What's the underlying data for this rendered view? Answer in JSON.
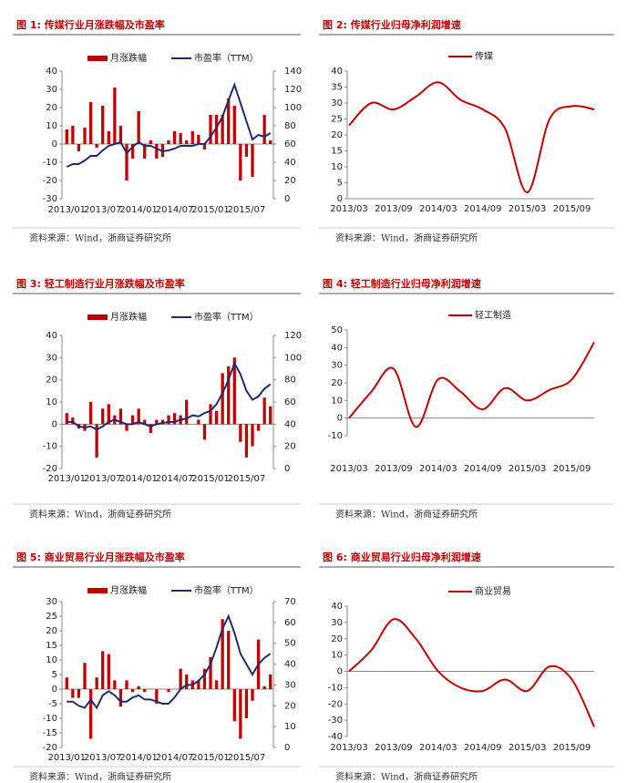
{
  "chart_data": [
    {
      "type": "combo",
      "title": "图 1: 传媒行业月涨跌幅及市盈率",
      "source": "资料来源：Wind，浙商证券研究所",
      "categories": [
        "2013/01",
        null,
        null,
        null,
        null,
        null,
        "2013/07",
        null,
        null,
        null,
        null,
        null,
        "2014/01",
        null,
        null,
        null,
        null,
        null,
        "2014/07",
        null,
        null,
        null,
        null,
        null,
        "2015/01",
        null,
        null,
        null,
        null,
        null,
        "2015/07",
        null,
        null,
        null,
        null
      ],
      "ylim": [
        -30,
        40
      ],
      "yticks": [
        -30,
        -20,
        -10,
        0,
        10,
        20,
        30,
        40
      ],
      "y2lim": [
        0,
        140
      ],
      "y2ticks": [
        0,
        20,
        40,
        60,
        80,
        100,
        120,
        140
      ],
      "series": [
        {
          "name": "月涨跌幅",
          "color": "#c00000",
          "values": [
            8,
            10,
            -4,
            9,
            23,
            -2,
            21,
            7,
            31,
            10,
            -20,
            -8,
            18,
            -8,
            2,
            -8,
            -7,
            2,
            7,
            6,
            2,
            7,
            5,
            -3,
            16,
            16,
            16,
            25,
            21,
            -20,
            -7,
            -18,
            0,
            16,
            2
          ]
        },
        {
          "name": "市盈率（TTM）",
          "color": "#1f2d6e",
          "axis": "y2",
          "values": [
            35,
            38,
            38,
            42,
            47,
            47,
            53,
            58,
            60,
            62,
            50,
            57,
            62,
            58,
            58,
            55,
            52,
            53,
            55,
            58,
            58,
            58,
            60,
            60,
            68,
            78,
            90,
            108,
            125,
            105,
            85,
            65,
            70,
            68,
            72
          ]
        }
      ]
    },
    {
      "type": "line",
      "title": "图 2: 传媒行业归母净利润增速",
      "source": "资料来源：Wind，浙商证券研究所",
      "smooth": true,
      "categories": [
        "2013/03",
        null,
        "2013/09",
        null,
        "2014/03",
        null,
        "2014/09",
        null,
        "2015/03",
        null,
        "2015/09",
        null
      ],
      "ylim": [
        0,
        40
      ],
      "yticks": [
        0,
        5,
        10,
        15,
        20,
        25,
        30,
        35,
        40
      ],
      "series": [
        {
          "name": "传媒",
          "color": "#c00000",
          "values": [
            23,
            30,
            28,
            32,
            36.5,
            31,
            28,
            22,
            2,
            25,
            29,
            28
          ]
        }
      ]
    },
    {
      "type": "combo",
      "title": "图 3: 轻工制造行业月涨跌幅及市盈率",
      "source": "资料来源：Wind，浙商证券研究所",
      "categories": [
        "2013/01",
        null,
        null,
        null,
        null,
        null,
        "2013/07",
        null,
        null,
        null,
        null,
        null,
        "2014/01",
        null,
        null,
        null,
        null,
        null,
        "2014/07",
        null,
        null,
        null,
        null,
        null,
        "2015/01",
        null,
        null,
        null,
        null,
        null,
        "2015/07",
        null,
        null,
        null,
        null
      ],
      "ylim": [
        -20,
        40
      ],
      "yticks": [
        -20,
        -10,
        0,
        10,
        20,
        30,
        40
      ],
      "y2lim": [
        0,
        120
      ],
      "y2ticks": [
        0,
        20,
        40,
        60,
        80,
        100,
        120
      ],
      "series": [
        {
          "name": "月涨跌幅",
          "color": "#c00000",
          "values": [
            5,
            3,
            -2,
            -3,
            10,
            -15,
            7,
            9,
            4,
            7,
            -3,
            4,
            7,
            2,
            -4,
            2,
            2,
            4,
            5,
            4,
            11,
            0,
            2,
            -7,
            9,
            6,
            23,
            26,
            30,
            -8,
            -15,
            -10,
            -3,
            12,
            8
          ]
        },
        {
          "name": "市盈率（TTM）",
          "color": "#1f2d6e",
          "axis": "y2",
          "values": [
            42,
            42,
            38,
            37,
            38,
            35,
            38,
            42,
            44,
            42,
            40,
            40,
            42,
            40,
            38,
            40,
            41,
            42,
            42,
            44,
            45,
            48,
            47,
            50,
            52,
            58,
            68,
            80,
            95,
            85,
            70,
            62,
            65,
            72,
            76
          ]
        }
      ]
    },
    {
      "type": "line",
      "title": "图 4: 轻工制造行业归母净利润增速",
      "source": "资料来源：Wind，浙商证券研究所",
      "smooth": true,
      "categories": [
        "2013/03",
        null,
        "2013/09",
        null,
        "2014/03",
        null,
        "2014/09",
        null,
        "2015/03",
        null,
        "2015/09",
        null
      ],
      "ylim": [
        -10,
        50
      ],
      "yticks": [
        -10,
        0,
        10,
        20,
        30,
        40,
        50
      ],
      "series": [
        {
          "name": "轻工制造",
          "color": "#c00000",
          "values": [
            0,
            15,
            28,
            -5,
            22,
            15,
            5,
            17,
            10,
            16,
            22,
            43
          ]
        }
      ]
    },
    {
      "type": "combo",
      "title": "图 5: 商业贸易行业月涨跌幅及市盈率",
      "source": "资料来源：Wind，浙商证券研究所",
      "categories": [
        "2013/01",
        null,
        null,
        null,
        null,
        null,
        "2013/07",
        null,
        null,
        null,
        null,
        null,
        "2014/01",
        null,
        null,
        null,
        null,
        null,
        "2014/07",
        null,
        null,
        null,
        null,
        null,
        "2015/01",
        null,
        null,
        null,
        null,
        null,
        "2015/07",
        null,
        null,
        null,
        null
      ],
      "ylim": [
        -20,
        30
      ],
      "yticks": [
        -20,
        -15,
        -10,
        -5,
        0,
        5,
        10,
        15,
        20,
        25,
        30
      ],
      "y2lim": [
        0,
        70
      ],
      "y2ticks": [
        0,
        10,
        20,
        30,
        40,
        50,
        60,
        70
      ],
      "series": [
        {
          "name": "月涨跌幅",
          "color": "#c00000",
          "values": [
            4,
            -3,
            -3,
            9,
            -17,
            4,
            13,
            12,
            3,
            -6,
            3,
            -1,
            1,
            -1,
            0,
            -5,
            0,
            -1,
            0,
            7,
            5,
            3,
            3,
            7,
            11,
            3,
            24,
            20,
            -11,
            -17,
            -10,
            -4,
            17,
            1,
            5
          ]
        },
        {
          "name": "市盈率（TTM）",
          "color": "#1f2d6e",
          "axis": "y2",
          "values": [
            22,
            22,
            20,
            19,
            23,
            19,
            25,
            27,
            25,
            22,
            22,
            24,
            25,
            23,
            23,
            22,
            21,
            21,
            24,
            28,
            30,
            30,
            32,
            35,
            40,
            48,
            57,
            63,
            55,
            45,
            40,
            35,
            40,
            43,
            45
          ]
        }
      ]
    },
    {
      "type": "line",
      "title": "图 6: 商业贸易行业归母净利润增速",
      "source": "资料来源：Wind，浙商证券研究所",
      "smooth": true,
      "categories": [
        "2013/03",
        null,
        "2013/09",
        null,
        "2014/03",
        null,
        "2014/09",
        null,
        "2015/03",
        null,
        "2015/09",
        null
      ],
      "ylim": [
        -40,
        40
      ],
      "yticks": [
        -40,
        -30,
        -20,
        -10,
        0,
        10,
        20,
        30,
        40
      ],
      "series": [
        {
          "name": "商业贸易",
          "color": "#c00000",
          "values": [
            0,
            13,
            32,
            20,
            0,
            -10,
            -12,
            -5,
            -12,
            3,
            -5,
            -34
          ]
        }
      ]
    }
  ]
}
